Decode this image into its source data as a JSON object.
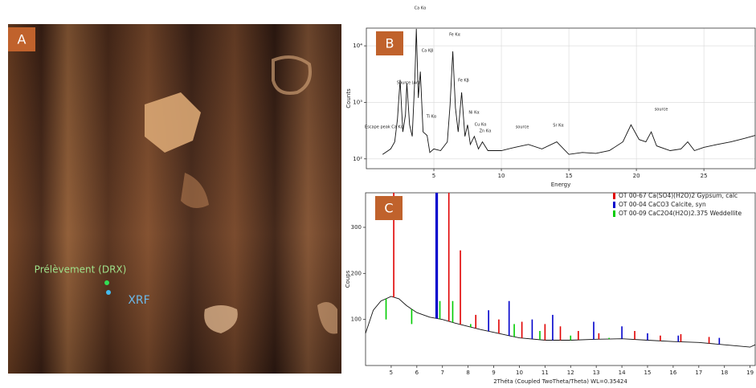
{
  "panel_a": {
    "label": "A",
    "sample_label": "Prélèvement (DRX)",
    "xrf_label": "XRF"
  },
  "chart_data": [
    {
      "type": "line",
      "label": "B",
      "x_label": "Energy",
      "y_label": "Counts",
      "log_y": true,
      "grid": true,
      "color": "#111111",
      "xlim": [
        0,
        28.8
      ],
      "xticks": [
        5,
        10,
        15,
        20,
        25
      ],
      "ylim": [
        67,
        20600
      ],
      "yticks": [
        {
          "value": 100,
          "label": "10²"
        },
        {
          "value": 1000,
          "label": "10³"
        },
        {
          "value": 10000,
          "label": "10⁴"
        }
      ],
      "x": [
        1.2,
        1.8,
        2.1,
        2.3,
        2.5,
        2.7,
        2.9,
        3.0,
        3.2,
        3.4,
        3.6,
        3.7,
        3.85,
        4.0,
        4.2,
        4.5,
        4.7,
        5.0,
        5.5,
        6.0,
        6.2,
        6.4,
        6.6,
        6.8,
        7.06,
        7.3,
        7.5,
        7.7,
        8.0,
        8.3,
        8.6,
        9.0,
        10,
        11,
        12,
        13,
        14.1,
        15,
        16,
        17,
        18,
        19,
        19.6,
        20.2,
        20.7,
        21.1,
        21.5,
        22.5,
        23.3,
        23.8,
        24.3,
        25,
        26,
        27,
        28,
        28.8
      ],
      "values": [
        120,
        150,
        200,
        500,
        2500,
        300,
        600,
        2200,
        400,
        250,
        3000,
        20000,
        1200,
        3500,
        300,
        260,
        130,
        150,
        140,
        200,
        900,
        8000,
        800,
        300,
        1500,
        250,
        400,
        180,
        250,
        150,
        200,
        140,
        140,
        160,
        180,
        150,
        200,
        120,
        130,
        125,
        140,
        200,
        400,
        220,
        200,
        300,
        170,
        140,
        150,
        200,
        140,
        160,
        180,
        200,
        230,
        260
      ],
      "annotations": [
        "Escape peak Ca Kα",
        "Source (Ar)",
        "Ca Kα",
        "Ca Kβ",
        "Ti Kα",
        "Fe Kα",
        "Fe Kβ",
        "Ni Kα",
        "Cu Kα",
        "Zn Kα",
        "source",
        "Sr Kα",
        "source"
      ]
    },
    {
      "type": "line",
      "label": "C",
      "x_label": "2Théta (Coupled TwoTheta/Theta) WL=0.35424",
      "y_label": "Coups",
      "color": "#111111",
      "xlim": [
        4,
        19.2
      ],
      "xticks": [
        5,
        6,
        7,
        8,
        9,
        10,
        11,
        12,
        13,
        14,
        15,
        16,
        17,
        18,
        19
      ],
      "ylim": [
        0,
        375
      ],
      "yticks": [
        100,
        200,
        300
      ],
      "x": [
        4,
        4.3,
        4.6,
        5,
        5.3,
        5.6,
        6,
        6.5,
        7,
        7.5,
        8,
        8.5,
        9,
        9.5,
        10,
        11,
        12,
        13,
        14,
        15,
        16,
        17,
        18,
        19,
        19.2
      ],
      "values": [
        70,
        120,
        140,
        150,
        145,
        130,
        115,
        105,
        100,
        92,
        85,
        78,
        72,
        66,
        60,
        55,
        55,
        57,
        58,
        55,
        52,
        50,
        45,
        40,
        45
      ],
      "series": [
        {
          "name": "OT 00-67 Ca(SO4)(H2O)2 Gypsum, calc",
          "color": "#e00000",
          "x": [
            5.1,
            7.25,
            7.7,
            8.3,
            9.2,
            10.1,
            11.0,
            11.6,
            12.3,
            13.1,
            14.5,
            15.5,
            16.3,
            17.4
          ],
          "values": [
            375,
            375,
            250,
            110,
            100,
            95,
            90,
            85,
            75,
            70,
            75,
            65,
            68,
            62
          ]
        },
        {
          "name": "OT 00-04 CaCO3 Calcite, syn",
          "color": "#0000cc",
          "x": [
            5.4,
            6.75,
            6.8,
            8.8,
            9.6,
            10.5,
            11.3,
            12.9,
            14.0,
            15.0,
            16.2,
            17.8
          ],
          "values": [
            140,
            375,
            375,
            120,
            140,
            100,
            110,
            95,
            85,
            70,
            65,
            60
          ]
        },
        {
          "name": "OT 00-09 CaC2O4(H2O)2.375 Weddellite",
          "color": "#00cc00",
          "x": [
            4.8,
            5.8,
            6.9,
            7.4,
            8.1,
            9.8,
            10.8,
            12.0,
            13.5
          ],
          "values": [
            100,
            90,
            140,
            140,
            90,
            90,
            75,
            65,
            60
          ]
        }
      ]
    }
  ]
}
